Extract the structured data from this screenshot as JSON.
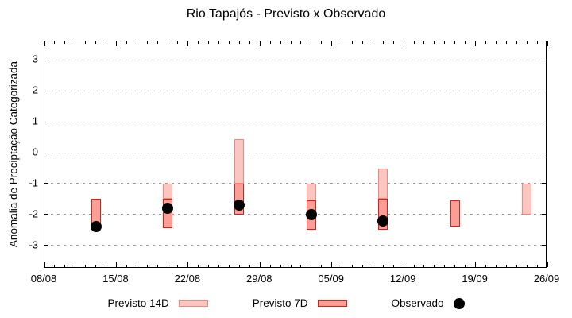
{
  "chart_data": {
    "type": "bar",
    "subtype": "range-bars-with-observed-scatter",
    "title": "Rio Tapajós - Previsto x Observado",
    "ylabel": "Anomalia de Preciptação Categorizada",
    "xlabel": "",
    "grid": "horizontal-dotted",
    "legend_position": "bottom-center",
    "ylim": [
      -3.75,
      3.6
    ],
    "xlim_days": [
      0,
      49
    ],
    "y_ticks": [
      3,
      2,
      1,
      0,
      -1,
      -2,
      -3
    ],
    "x_major_ticks": [
      {
        "day": 0,
        "label": "08/08"
      },
      {
        "day": 7,
        "label": "15/08"
      },
      {
        "day": 14,
        "label": "22/08"
      },
      {
        "day": 21,
        "label": "29/08"
      },
      {
        "day": 28,
        "label": "05/09"
      },
      {
        "day": 35,
        "label": "12/09"
      },
      {
        "day": 42,
        "label": "19/09"
      },
      {
        "day": 49,
        "label": "26/09"
      }
    ],
    "x_minor_tick_every_days": 1,
    "colors": {
      "previsto_14d_fill": "#fbc6c0",
      "previsto_14d_border": "#f0897b",
      "previsto_7d_fill": "#fa9e96",
      "previsto_7d_border": "#e41a15",
      "observado": "#000000",
      "grid": "#9a9a9a"
    },
    "series": [
      {
        "name": "Previsto 14D",
        "kind": "range-bar",
        "fill": "#fbc6c0",
        "border": "#f0897b",
        "data": [
          {
            "date": "20/08",
            "day": 12,
            "top": -1.0,
            "bottom": -1.5
          },
          {
            "date": "27/08",
            "day": 19,
            "top": 0.45,
            "bottom": -1.0
          },
          {
            "date": "03/09",
            "day": 26,
            "top": -1.0,
            "bottom": -1.55
          },
          {
            "date": "10/09",
            "day": 33,
            "top": -0.5,
            "bottom": -1.5
          },
          {
            "date": "24/09",
            "day": 47,
            "top": -1.0,
            "bottom": -2.0
          }
        ]
      },
      {
        "name": "Previsto 7D",
        "kind": "range-bar",
        "fill": "#fa9e96",
        "border": "#e41a15",
        "data": [
          {
            "date": "13/08",
            "day": 5,
            "top": -1.5,
            "bottom": -2.3
          },
          {
            "date": "20/08",
            "day": 12,
            "top": -1.5,
            "bottom": -2.45
          },
          {
            "date": "27/08",
            "day": 19,
            "top": -1.0,
            "bottom": -2.0
          },
          {
            "date": "03/09",
            "day": 26,
            "top": -1.55,
            "bottom": -2.5
          },
          {
            "date": "10/09",
            "day": 33,
            "top": -1.5,
            "bottom": -2.5
          },
          {
            "date": "17/09",
            "day": 40,
            "top": -1.55,
            "bottom": -2.4
          }
        ]
      },
      {
        "name": "Observado",
        "kind": "scatter",
        "color": "#000000",
        "data": [
          {
            "date": "13/08",
            "day": 5,
            "value": -2.4
          },
          {
            "date": "20/08",
            "day": 12,
            "value": -1.8
          },
          {
            "date": "27/08",
            "day": 19,
            "value": -1.7
          },
          {
            "date": "03/09",
            "day": 26,
            "value": -2.0
          },
          {
            "date": "10/09",
            "day": 33,
            "value": -2.2
          }
        ]
      }
    ],
    "legend": [
      {
        "label": "Previsto 14D",
        "swatch": "range-14d"
      },
      {
        "label": "Previsto 7D",
        "swatch": "range-7d"
      },
      {
        "label": "Observado",
        "swatch": "dot"
      }
    ]
  }
}
